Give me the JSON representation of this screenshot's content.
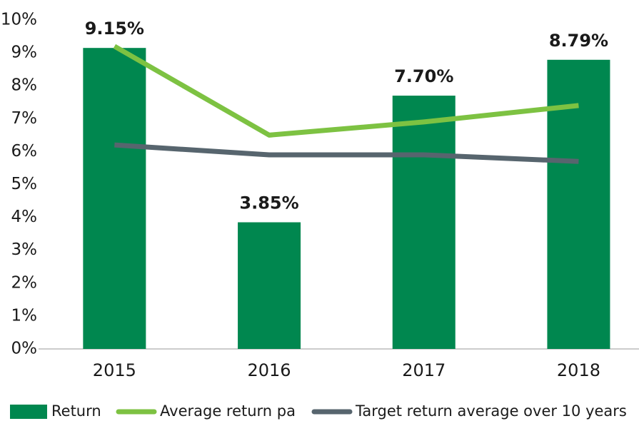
{
  "chart_data": {
    "type": "bar_line",
    "categories": [
      "2015",
      "2016",
      "2017",
      "2018"
    ],
    "series": [
      {
        "name": "Return",
        "type": "bar",
        "color": "#00874f",
        "values": [
          9.15,
          3.85,
          7.7,
          8.79
        ],
        "value_labels": [
          "9.15%",
          "3.85%",
          "7.70%",
          "8.79%"
        ]
      },
      {
        "name": "Average return pa",
        "type": "line",
        "color": "#7dc242",
        "values": [
          9.2,
          6.5,
          6.9,
          7.4
        ]
      },
      {
        "name": "Target return average over 10 years",
        "type": "line",
        "color": "#57656e",
        "values": [
          6.2,
          5.9,
          5.9,
          5.7
        ]
      }
    ],
    "ylim": [
      0,
      10
    ],
    "yticks": [
      {
        "value": 0,
        "label": "0%"
      },
      {
        "value": 1,
        "label": "1%"
      },
      {
        "value": 2,
        "label": "2%"
      },
      {
        "value": 3,
        "label": "3%"
      },
      {
        "value": 4,
        "label": "4%"
      },
      {
        "value": 5,
        "label": "5%"
      },
      {
        "value": 6,
        "label": "6%"
      },
      {
        "value": 7,
        "label": "7%"
      },
      {
        "value": 8,
        "label": "8%"
      },
      {
        "value": 9,
        "label": "9%"
      },
      {
        "value": 10,
        "label": "10%"
      }
    ],
    "grid": false,
    "legend": "bottom"
  }
}
